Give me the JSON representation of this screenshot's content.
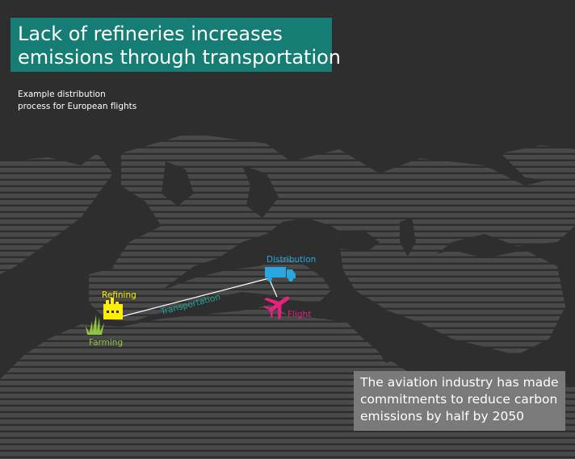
{
  "title": {
    "line1": "Lack of refineries increases",
    "line2": "emissions through transportation"
  },
  "subtitle": {
    "line1": "Example distribution",
    "line2": "process for European flights"
  },
  "stages": {
    "farming": "Farming",
    "refining": "Refining",
    "transportation": "Transportation",
    "distribution": "Distribution",
    "flight": "Flight"
  },
  "note": {
    "line1": "The aviation industry has made",
    "line2": "commitments to reduce carbon",
    "line3": "emissions by half by 2050"
  },
  "colors": {
    "background": "#2e2e2e",
    "land": "#4a4a4a",
    "title_box": "#157d73",
    "note_box": "#7a7a7a",
    "farming": "#8ec63f",
    "refining": "#ffee00",
    "transportation": "#1aa59a",
    "distribution": "#29a8e0",
    "flight": "#e8207f"
  },
  "icons": {
    "farming": "grass-icon",
    "refining": "factory-icon",
    "distribution": "truck-icon",
    "flight": "airplane-icon"
  }
}
